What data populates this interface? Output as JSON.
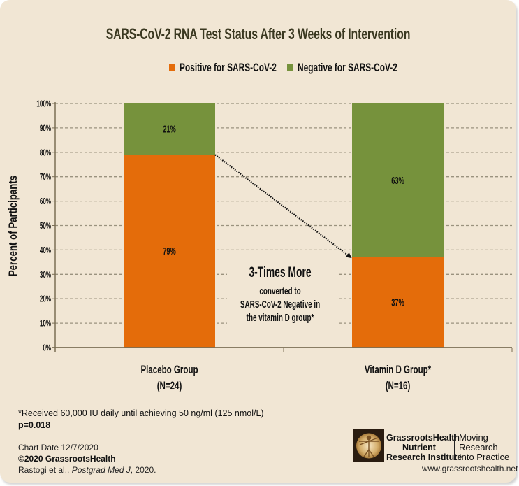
{
  "chart_data": {
    "type": "bar",
    "stacked": true,
    "title": "SARS-CoV-2 RNA Test Status After 3 Weeks of Intervention",
    "xlabel": "",
    "ylabel": "Percent of Participants",
    "ylim": [
      0,
      100
    ],
    "yticks": [
      "0%",
      "10%",
      "20%",
      "30%",
      "40%",
      "50%",
      "60%",
      "70%",
      "80%",
      "90%",
      "100%"
    ],
    "grid": true,
    "legend_position": "top-center",
    "categories": [
      {
        "name": "Placebo Group",
        "n": "(N=24)"
      },
      {
        "name": "Vitamin D Group*",
        "n": "(N=16)"
      }
    ],
    "series": [
      {
        "name": "Positive for SARS-CoV-2",
        "color": "#E46C0A",
        "values": [
          79,
          37
        ],
        "labels": [
          "79%",
          "37%"
        ]
      },
      {
        "name": "Negative for SARS-CoV-2",
        "color": "#76923C",
        "values": [
          21,
          63
        ],
        "labels": [
          "21%",
          "63%"
        ]
      }
    ],
    "annotation": {
      "headline": "3-Times More",
      "lines": [
        "converted to",
        "SARS-CoV-2 Negative in",
        "the vitamin D group*"
      ],
      "arrow": "dotted arrow from Placebo positive top (79%) to Vitamin D positive top (37%)"
    }
  },
  "colors": {
    "background": "#F1E6D4",
    "title": "#3a3820",
    "axis": "#7a6e55",
    "grid": "#9a927e"
  },
  "footnotes": {
    "dosage": "*Received 60,000 IU daily until achieving 50 ng/ml (125 nmol/L)",
    "pvalue": "p=0.018",
    "chart_date": "Chart Date 12/7/2020",
    "copyright": "©2020 GrassrootsHealth",
    "citation_authors": "Rastogi et al., ",
    "citation_journal": "Postgrad Med J",
    "citation_year": ", 2020."
  },
  "branding": {
    "logo_icon": "vitruvian-man-icon",
    "org_line1": "GrassrootsHealth",
    "org_line2": "Nutrient",
    "org_line3": "Research Institute",
    "tagline1": "Moving",
    "tagline2": "Research",
    "tagline3": "Into Practice",
    "website": "www.grassrootshealth.net"
  }
}
